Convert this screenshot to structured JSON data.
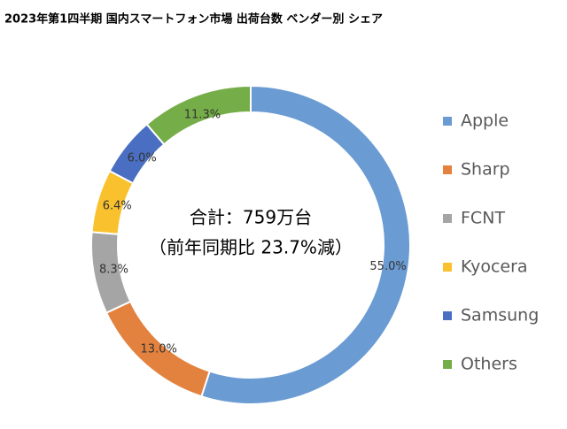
{
  "chart_data": {
    "type": "pie",
    "donut": true,
    "title": "2023年第1四半期 国内スマートフォン市場 出荷台数 ベンダー別 シェア",
    "annotations": [
      "合計：759万台",
      "（前年同期比 23.7%減）"
    ],
    "categories": [
      "Apple",
      "Sharp",
      "FCNT",
      "Kyocera",
      "Samsung",
      "Others"
    ],
    "values": [
      55.0,
      13.0,
      8.3,
      6.4,
      6.0,
      11.3
    ],
    "value_labels": [
      "55.0%",
      "13.0%",
      "8.3%",
      "6.4%",
      "6.0%",
      "11.3%"
    ],
    "colors": [
      "#6a9bd3",
      "#e3823e",
      "#a5a5a5",
      "#f9c12d",
      "#4a6fc2",
      "#75ad48"
    ],
    "legend": "right"
  }
}
